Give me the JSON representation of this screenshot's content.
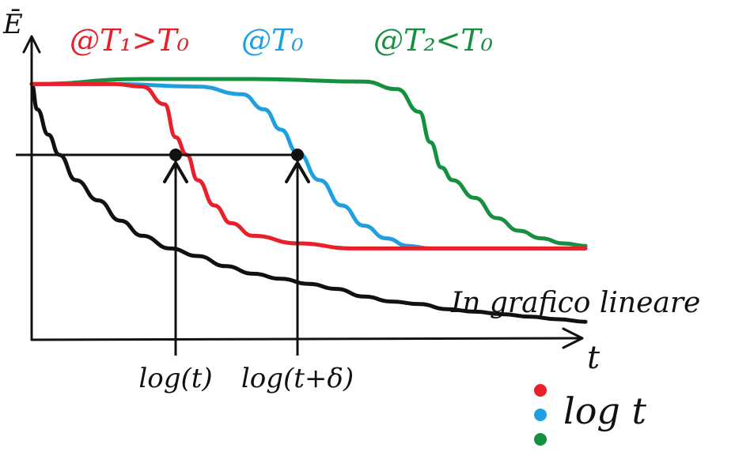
{
  "chart_data": {
    "type": "line",
    "x_unit": "t",
    "y_unit": "Ē",
    "axes": {
      "x_label": "t",
      "y_label": "Ē",
      "xlim": [
        0,
        100
      ],
      "ylim": [
        0,
        100
      ],
      "grid": false
    },
    "series": [
      {
        "name": "@T1>T0",
        "color": "#e8202a",
        "x": [
          0,
          5,
          15,
          20,
          24,
          26,
          28,
          30,
          33,
          36,
          40,
          48,
          58,
          70,
          80,
          90,
          100
        ],
        "y": [
          98,
          98,
          98,
          97,
          90,
          77,
          70,
          60,
          50,
          43,
          38,
          35,
          33,
          33,
          33,
          33,
          33
        ]
      },
      {
        "name": "@T0",
        "color": "#1ea0e0",
        "x": [
          0,
          15,
          30,
          38,
          42,
          45,
          48,
          52,
          56,
          60,
          64,
          68,
          72,
          80,
          90,
          100
        ],
        "y": [
          98,
          98,
          97,
          94,
          88,
          80,
          71,
          60,
          50,
          42,
          37,
          34,
          33,
          33,
          33,
          33
        ]
      },
      {
        "name": "@T2<T0",
        "color": "#159040",
        "x": [
          0,
          20,
          40,
          60,
          66,
          70,
          72,
          74,
          76,
          80,
          84,
          88,
          92,
          96,
          100
        ],
        "y": [
          98,
          100,
          100,
          99,
          96,
          87,
          75,
          65,
          60,
          53,
          45,
          40,
          37,
          35,
          34
        ]
      },
      {
        "name": "In grafico lineare",
        "color": "#111111",
        "x": [
          0,
          1,
          3,
          5,
          8,
          12,
          16,
          20,
          25,
          30,
          35,
          40,
          45,
          50,
          55,
          60,
          65,
          70,
          75,
          80,
          85,
          90,
          95,
          100
        ],
        "y": [
          98,
          88,
          78,
          70,
          60,
          52,
          44,
          38,
          33,
          30,
          26,
          23,
          21,
          19,
          17,
          14,
          12,
          11,
          9,
          8,
          7,
          6,
          5,
          4
        ]
      }
    ],
    "legend": {
      "title_items": [
        {
          "text": "@T₁>T₀",
          "color": "#e8202a"
        },
        {
          "text": "@T₀",
          "color": "#1ea0e0"
        },
        {
          "text": "@T₂<T₀",
          "color": "#159040"
        }
      ],
      "dots": [
        "#e8202a",
        "#1ea0e0",
        "#159040"
      ],
      "dots_label": "log t"
    },
    "reference_line": {
      "y": 70
    },
    "markers": [
      {
        "x": 26,
        "y": 70,
        "label": "log(t)"
      },
      {
        "x": 48,
        "y": 70,
        "label": "log(t+δ)"
      }
    ],
    "annotation": "In grafico lineare"
  }
}
